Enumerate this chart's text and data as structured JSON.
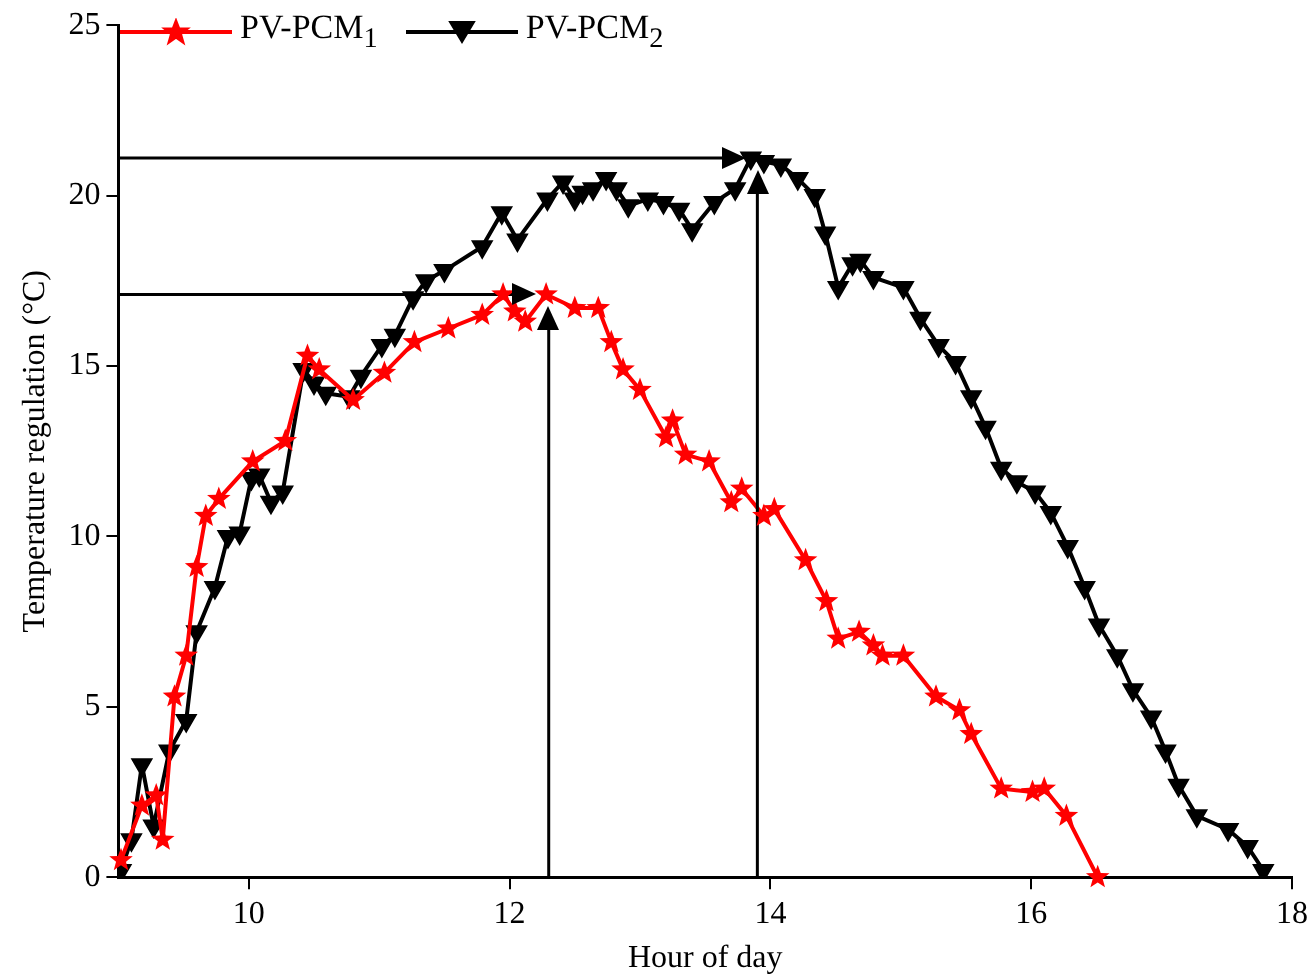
{
  "chart_data": {
    "type": "line",
    "xlabel": "Hour of day",
    "ylabel": "Temperature regulation (°C)",
    "xlim": [
      9,
      18
    ],
    "xticks": [
      10,
      12,
      14,
      16,
      18
    ],
    "ylim": [
      0,
      25
    ],
    "yticks": [
      0,
      5,
      10,
      15,
      20,
      25
    ],
    "grid": false,
    "legend": "top",
    "line_style": "solid",
    "series": [
      {
        "name": "PV-PCM$_{1}$",
        "color": "#ff0000",
        "marker": "star",
        "x": [
          9.02,
          9.18,
          9.29,
          9.34,
          9.43,
          9.52,
          9.6,
          9.67,
          9.77,
          10.03,
          10.28,
          10.45,
          10.54,
          10.8,
          11.04,
          11.27,
          11.53,
          11.79,
          11.95,
          12.04,
          12.12,
          12.28,
          12.5,
          12.68,
          12.78,
          12.87,
          13.0,
          13.2,
          13.25,
          13.35,
          13.53,
          13.7,
          13.78,
          13.95,
          14.03,
          14.27,
          14.43,
          14.52,
          14.68,
          14.79,
          14.86,
          15.02,
          15.27,
          15.45,
          15.54,
          15.77,
          16.01,
          16.1,
          16.27,
          16.51
        ],
        "values": [
          0.5,
          2.1,
          2.4,
          1.1,
          5.3,
          6.5,
          9.1,
          10.6,
          11.1,
          12.2,
          12.8,
          15.3,
          14.9,
          14.0,
          14.8,
          15.7,
          16.1,
          16.5,
          17.1,
          16.6,
          16.3,
          17.1,
          16.7,
          16.7,
          15.7,
          14.9,
          14.3,
          12.9,
          13.4,
          12.4,
          12.2,
          11.0,
          11.4,
          10.6,
          10.8,
          9.3,
          8.1,
          7.0,
          7.2,
          6.8,
          6.5,
          6.5,
          5.3,
          4.9,
          4.2,
          2.6,
          2.5,
          2.6,
          1.8,
          0
        ]
      },
      {
        "name": "PV-PCM$_{2}$",
        "color": "#000000",
        "marker": "triangle",
        "x": [
          9.02,
          9.1,
          9.18,
          9.27,
          9.39,
          9.52,
          9.6,
          9.74,
          9.84,
          9.93,
          10.02,
          10.08,
          10.17,
          10.26,
          10.42,
          10.5,
          10.59,
          10.77,
          10.86,
          11.02,
          11.12,
          11.26,
          11.36,
          11.5,
          11.79,
          11.94,
          12.06,
          12.29,
          12.41,
          12.5,
          12.56,
          12.64,
          12.74,
          12.82,
          12.91,
          13.06,
          13.18,
          13.3,
          13.4,
          13.57,
          13.73,
          13.85,
          13.95,
          14.08,
          14.21,
          14.34,
          14.42,
          14.52,
          14.63,
          14.69,
          14.79,
          15.02,
          15.15,
          15.29,
          15.42,
          15.54,
          15.65,
          15.77,
          15.89,
          16.03,
          16.15,
          16.28,
          16.41,
          16.52,
          16.66,
          16.78,
          16.92,
          17.03,
          17.13,
          17.27,
          17.51,
          17.66,
          17.78
        ],
        "values": [
          0.2,
          1.1,
          3.3,
          1.5,
          3.7,
          4.6,
          7.2,
          8.5,
          10.0,
          10.1,
          11.7,
          11.8,
          11.0,
          11.3,
          14.9,
          14.5,
          14.2,
          14.1,
          14.7,
          15.6,
          15.9,
          17.0,
          17.5,
          17.8,
          18.5,
          19.5,
          18.7,
          19.9,
          20.4,
          19.9,
          20.1,
          20.2,
          20.5,
          20.2,
          19.7,
          19.9,
          19.8,
          19.6,
          19.0,
          19.8,
          20.2,
          21.1,
          21.0,
          20.9,
          20.5,
          20.0,
          18.9,
          17.3,
          18.0,
          18.1,
          17.6,
          17.3,
          16.4,
          15.6,
          15.1,
          14.1,
          13.2,
          12.0,
          11.6,
          11.3,
          10.7,
          9.7,
          8.5,
          7.4,
          6.5,
          5.5,
          4.7,
          3.7,
          2.7,
          1.8,
          1.4,
          0.9,
          0.2
        ]
      }
    ],
    "ref_lines": [
      {
        "axis": "y",
        "value": 17.1,
        "color": "#000000"
      },
      {
        "axis": "x",
        "value": 12.3,
        "color": "#000000"
      },
      {
        "axis": "y",
        "value": 21.1,
        "color": "#000000"
      },
      {
        "axis": "x",
        "value": 13.9,
        "color": "#000000"
      }
    ]
  }
}
